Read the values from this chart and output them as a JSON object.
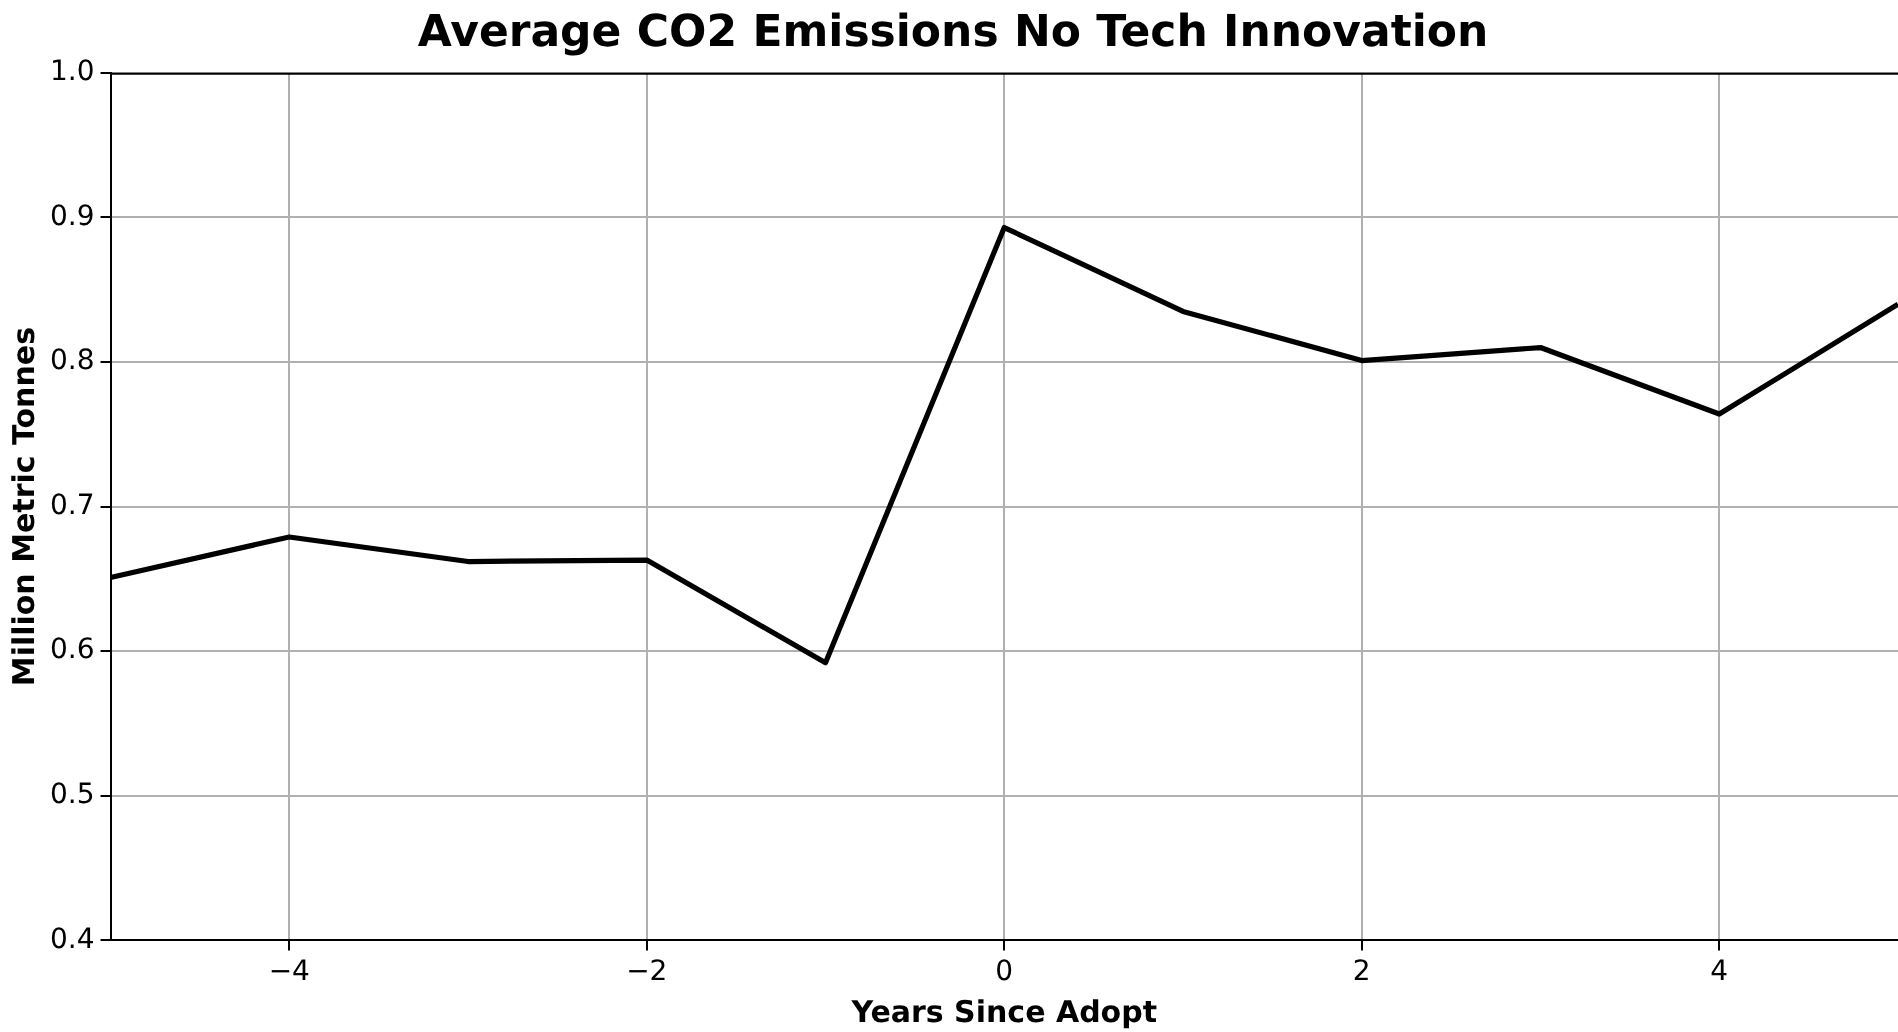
{
  "chart_data": {
    "type": "line",
    "title": "Average CO2 Emissions No Tech Innovation",
    "xlabel": "Years Since Adopt",
    "ylabel": "Million Metric Tonnes",
    "x": [
      -5,
      -4,
      -3,
      -2,
      -1,
      0,
      1,
      2,
      3,
      4,
      5
    ],
    "series": [
      {
        "color": "#000000",
        "values": [
          0.651,
          0.679,
          0.662,
          0.663,
          0.592,
          0.893,
          0.835,
          0.801,
          0.81,
          0.764,
          0.84
        ]
      }
    ],
    "xlim": [
      -5,
      5
    ],
    "xticks": [
      {
        "value": -4,
        "label": "−4"
      },
      {
        "value": -2,
        "label": "−2"
      },
      0,
      2,
      4
    ],
    "ylim": [
      0.4,
      1.0
    ],
    "yticks": [
      {
        "value": 0.4,
        "label": "0.4"
      },
      {
        "value": 0.5,
        "label": "0.5"
      },
      {
        "value": 0.6,
        "label": "0.6"
      },
      {
        "value": 0.7,
        "label": "0.7"
      },
      {
        "value": 0.8,
        "label": "0.8"
      },
      {
        "value": 0.9,
        "label": "0.9"
      },
      {
        "value": 1.0,
        "label": "1.0"
      }
    ],
    "grid": true,
    "legend": false,
    "marker": "none",
    "line_style": "solid"
  }
}
